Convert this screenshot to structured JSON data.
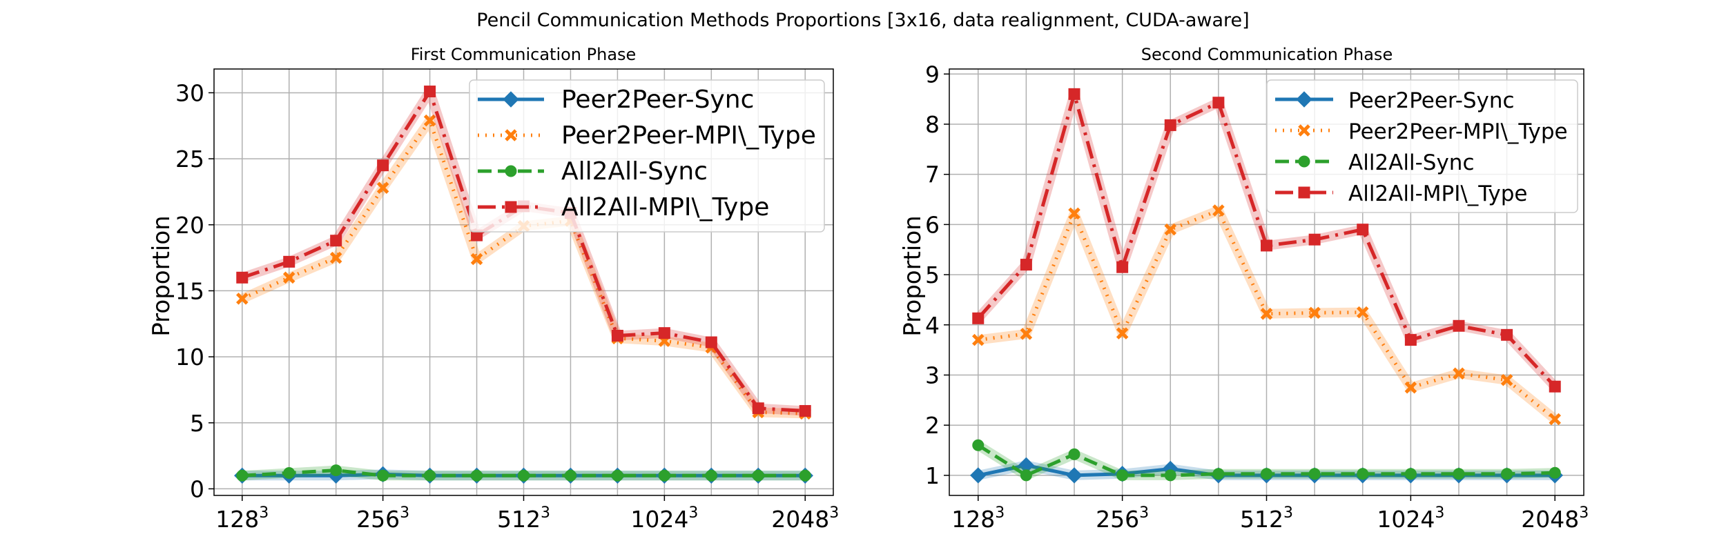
{
  "figure": {
    "suptitle": "Pencil Communication Methods Proportions [3x16, data realignment, CUDA-aware]"
  },
  "chart_data": [
    {
      "type": "line",
      "title": "First Communication Phase",
      "xlabel": "",
      "ylabel": "Proportion",
      "ylim": [
        -0.5,
        31.8
      ],
      "yticks": [
        0,
        5,
        10,
        15,
        20,
        25,
        30
      ],
      "x": [
        0,
        1,
        2,
        3,
        4,
        5,
        6,
        7,
        8,
        9,
        10,
        11,
        12
      ],
      "xticks": [
        0,
        3,
        6,
        9,
        12
      ],
      "xtick_labels": [
        "128",
        "256",
        "512",
        "1024",
        "2048"
      ],
      "xtick_superscript": "3",
      "grid": true,
      "legend_position": "top-right",
      "series": [
        {
          "name": "Peer2Peer-Sync",
          "color": "#1f77b4",
          "marker": "diamond",
          "dash": "solid",
          "values": [
            1.0,
            1.0,
            1.0,
            1.1,
            1.0,
            1.0,
            1.0,
            1.0,
            1.0,
            1.0,
            1.0,
            1.0,
            1.0
          ]
        },
        {
          "name": "Peer2Peer-MPI\\_Type",
          "color": "#ff7f0e",
          "marker": "x",
          "dash": "dotted",
          "values": [
            14.4,
            16.0,
            17.5,
            22.8,
            27.9,
            17.4,
            19.9,
            20.3,
            11.4,
            11.2,
            10.7,
            5.8,
            5.7
          ]
        },
        {
          "name": "All2All-Sync",
          "color": "#2ca02c",
          "marker": "circle",
          "dash": "dashed",
          "values": [
            1.0,
            1.2,
            1.4,
            1.0,
            1.0,
            1.0,
            1.0,
            1.0,
            1.0,
            1.0,
            1.0,
            1.0,
            1.0
          ]
        },
        {
          "name": "All2All-MPI\\_Type",
          "color": "#d62728",
          "marker": "square",
          "dash": "dashdot",
          "values": [
            16.0,
            17.2,
            18.8,
            24.5,
            30.1,
            19.2,
            21.4,
            20.9,
            11.6,
            11.8,
            11.1,
            6.1,
            5.9
          ]
        }
      ]
    },
    {
      "type": "line",
      "title": "Second Communication Phase",
      "xlabel": "",
      "ylabel": "Proportion",
      "ylim": [
        0.6,
        9.1
      ],
      "yticks": [
        1,
        2,
        3,
        4,
        5,
        6,
        7,
        8,
        9
      ],
      "x": [
        0,
        1,
        2,
        3,
        4,
        5,
        6,
        7,
        8,
        9,
        10,
        11,
        12
      ],
      "xticks": [
        0,
        3,
        6,
        9,
        12
      ],
      "xtick_labels": [
        "128",
        "256",
        "512",
        "1024",
        "2048"
      ],
      "xtick_superscript": "3",
      "grid": true,
      "legend_position": "top-right",
      "series": [
        {
          "name": "Peer2Peer-Sync",
          "color": "#1f77b4",
          "marker": "diamond",
          "dash": "solid",
          "values": [
            1.0,
            1.2,
            1.0,
            1.03,
            1.13,
            1.0,
            1.0,
            1.0,
            1.0,
            1.0,
            1.0,
            1.0,
            1.0
          ]
        },
        {
          "name": "Peer2Peer-MPI\\_Type",
          "color": "#ff7f0e",
          "marker": "x",
          "dash": "dotted",
          "values": [
            3.7,
            3.82,
            6.22,
            3.83,
            5.9,
            6.28,
            4.22,
            4.24,
            4.25,
            2.75,
            3.03,
            2.9,
            2.12
          ]
        },
        {
          "name": "All2All-Sync",
          "color": "#2ca02c",
          "marker": "circle",
          "dash": "dashed",
          "values": [
            1.6,
            1.0,
            1.42,
            1.0,
            1.0,
            1.03,
            1.03,
            1.03,
            1.03,
            1.03,
            1.03,
            1.03,
            1.05
          ]
        },
        {
          "name": "All2All-MPI\\_Type",
          "color": "#d62728",
          "marker": "square",
          "dash": "dashdot",
          "values": [
            4.13,
            5.2,
            8.6,
            5.15,
            7.98,
            8.43,
            5.58,
            5.7,
            5.9,
            3.7,
            3.98,
            3.8,
            2.77
          ]
        }
      ]
    }
  ]
}
